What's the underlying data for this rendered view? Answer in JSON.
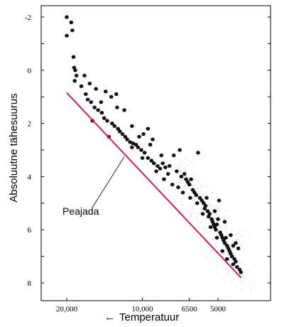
{
  "chart_data": {
    "type": "scatter",
    "title": "",
    "xlabel": "Temperatuur",
    "xlabel_arrow": "←",
    "ylabel": "Absoluutne tähesuurus",
    "y_inverted": true,
    "ylim": [
      -2.3,
      8.6
    ],
    "yticks": [
      -2,
      0,
      2,
      4,
      6,
      8
    ],
    "yticklabels": [
      "-2",
      "0",
      "2",
      "4",
      "6",
      "8"
    ],
    "xticks": [
      20000,
      10000,
      6500,
      5000
    ],
    "xticklabels": [
      "20,000",
      "10,000",
      "6500",
      "5000"
    ],
    "grid": false,
    "main_sequence_line": {
      "name": "Peajada",
      "color": "#cc1f5f",
      "start": {
        "x": 20000,
        "mag": 0.85
      },
      "end": {
        "x": 4050,
        "mag": 7.8
      }
    },
    "annotation": {
      "text": "Peajada",
      "points_to_mag": 3.2
    },
    "point_color": "#111111",
    "points": [
      [
        20000,
        -2.0
      ],
      [
        19200,
        -1.8
      ],
      [
        19000,
        -1.5
      ],
      [
        20000,
        -1.3
      ],
      [
        18800,
        -0.5
      ],
      [
        18700,
        -0.1
      ],
      [
        18500,
        0.0
      ],
      [
        18300,
        0.2
      ],
      [
        18600,
        0.4
      ],
      [
        17000,
        0.2
      ],
      [
        16200,
        0.5
      ],
      [
        15300,
        0.7
      ],
      [
        14000,
        0.8
      ],
      [
        12700,
        0.9
      ],
      [
        13300,
        1.0
      ],
      [
        17500,
        0.6
      ],
      [
        16800,
        0.9
      ],
      [
        16500,
        1.1
      ],
      [
        16000,
        1.2
      ],
      [
        15500,
        1.4
      ],
      [
        15000,
        1.5
      ],
      [
        14500,
        1.6
      ],
      [
        14200,
        1.8
      ],
      [
        13800,
        1.9
      ],
      [
        13200,
        2.0
      ],
      [
        12900,
        2.1
      ],
      [
        12500,
        2.2
      ],
      [
        12300,
        2.3
      ],
      [
        12000,
        2.4
      ],
      [
        11700,
        2.5
      ],
      [
        11500,
        2.6
      ],
      [
        11200,
        2.7
      ],
      [
        10900,
        2.75
      ],
      [
        10600,
        2.8
      ],
      [
        10400,
        2.9
      ],
      [
        10100,
        3.0
      ],
      [
        9900,
        2.4
      ],
      [
        9500,
        2.2
      ],
      [
        9300,
        2.8
      ],
      [
        9100,
        2.6
      ],
      [
        10300,
        2.5
      ],
      [
        11000,
        2.9
      ],
      [
        9800,
        3.1
      ],
      [
        9500,
        3.3
      ],
      [
        9200,
        3.4
      ],
      [
        9000,
        3.5
      ],
      [
        8700,
        3.6
      ],
      [
        8500,
        3.7
      ],
      [
        8300,
        3.5
      ],
      [
        8100,
        3.65
      ],
      [
        7900,
        3.9
      ],
      [
        7800,
        3.6
      ],
      [
        7500,
        3.2
      ],
      [
        7300,
        3.8
      ],
      [
        7100,
        3.0
      ],
      [
        7000,
        4.0
      ],
      [
        6800,
        3.9
      ],
      [
        6700,
        4.1
      ],
      [
        6600,
        4.2
      ],
      [
        6500,
        4.3
      ],
      [
        6400,
        4.1
      ],
      [
        6300,
        4.5
      ],
      [
        6200,
        4.6
      ],
      [
        6100,
        4.7
      ],
      [
        6000,
        3.1
      ],
      [
        5900,
        4.8
      ],
      [
        5800,
        4.9
      ],
      [
        5700,
        5.0
      ],
      [
        5650,
        5.2
      ],
      [
        5600,
        5.1
      ],
      [
        5500,
        5.3
      ],
      [
        5450,
        5.5
      ],
      [
        5400,
        5.4
      ],
      [
        5300,
        5.6
      ],
      [
        5250,
        5.7
      ],
      [
        5200,
        5.8
      ],
      [
        5150,
        5.9
      ],
      [
        5100,
        6.0
      ],
      [
        5050,
        5.8
      ],
      [
        5000,
        5.6
      ],
      [
        4950,
        4.9
      ],
      [
        4900,
        6.1
      ],
      [
        4850,
        6.2
      ],
      [
        4800,
        6.3
      ],
      [
        4750,
        6.4
      ],
      [
        4700,
        6.5
      ],
      [
        4650,
        6.3
      ],
      [
        4600,
        6.6
      ],
      [
        4550,
        6.7
      ],
      [
        4500,
        6.8
      ],
      [
        4450,
        6.9
      ],
      [
        4400,
        7.0
      ],
      [
        4350,
        6.6
      ],
      [
        4300,
        7.1
      ],
      [
        4250,
        7.2
      ],
      [
        4200,
        7.4
      ],
      [
        4150,
        6.7
      ],
      [
        4100,
        7.5
      ],
      [
        4050,
        7.6
      ],
      [
        8800,
        3.8
      ],
      [
        8200,
        4.1
      ],
      [
        7600,
        4.3
      ],
      [
        7200,
        4.4
      ],
      [
        6900,
        4.6
      ],
      [
        6450,
        4.8
      ],
      [
        6050,
        5.0
      ],
      [
        5750,
        5.4
      ],
      [
        5350,
        5.9
      ],
      [
        5050,
        6.3
      ],
      [
        4800,
        6.8
      ],
      [
        4600,
        7.1
      ],
      [
        4350,
        7.3
      ],
      [
        11800,
        1.5
      ],
      [
        12600,
        1.4
      ],
      [
        14600,
        1.2
      ],
      [
        11000,
        2.1
      ],
      [
        10000,
        3.3
      ],
      [
        8400,
        3.2
      ],
      [
        5550,
        4.8
      ],
      [
        5150,
        5.3
      ],
      [
        4700,
        5.7
      ],
      [
        4450,
        6.2
      ],
      [
        4250,
        6.5
      ],
      [
        15800,
        1.9
      ],
      [
        13600,
        2.5
      ]
    ]
  }
}
